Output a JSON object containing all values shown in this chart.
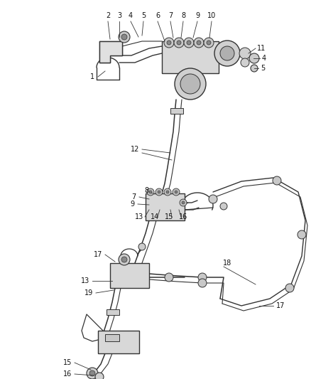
{
  "background_color": "#ffffff",
  "figsize": [
    4.38,
    5.33
  ],
  "dpi": 100,
  "line_color": "#333333",
  "label_fontsize": 7.0
}
